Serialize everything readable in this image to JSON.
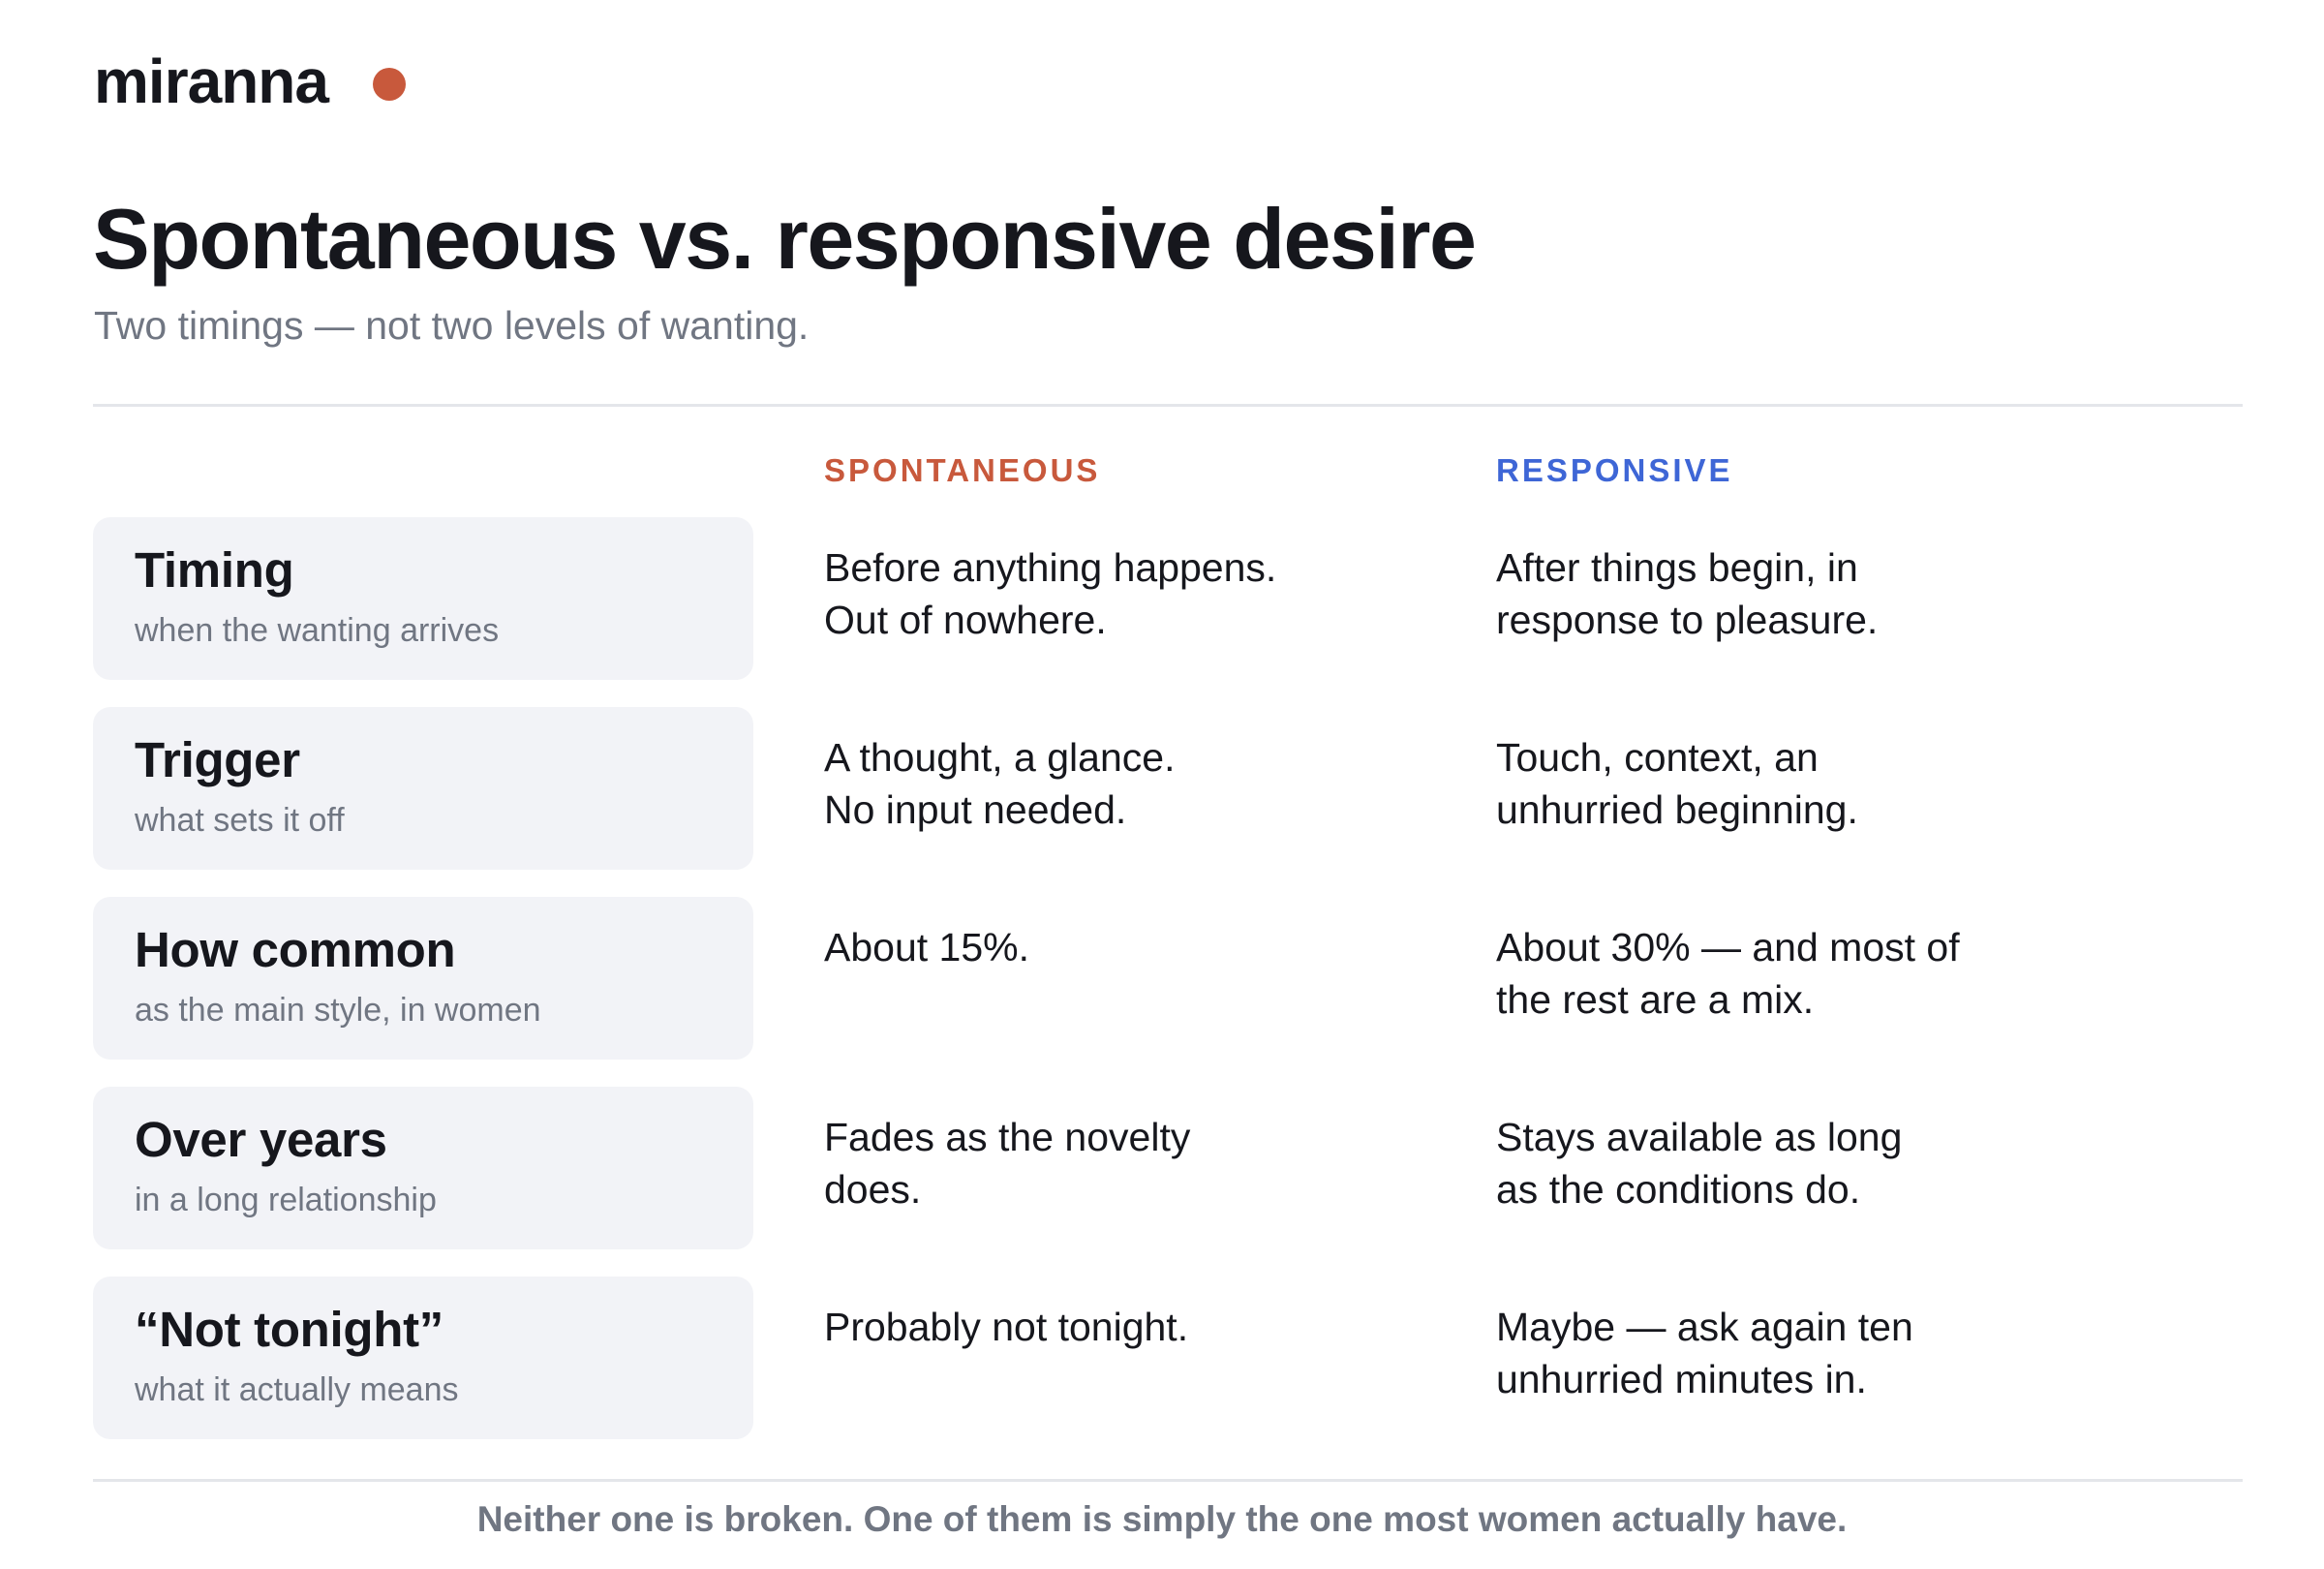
{
  "brand": {
    "name": "miranna",
    "dot_color": "#c8593c"
  },
  "title": "Spontaneous vs. responsive desire",
  "subtitle": "Two timings — not two levels of wanting.",
  "columns": {
    "spontaneous": "SPONTANEOUS",
    "responsive": "RESPONSIVE"
  },
  "colors": {
    "spontaneous": "#c8593c",
    "responsive": "#3e66d6",
    "card_background": "#f2f3f7",
    "muted_text": "#707682"
  },
  "rows": [
    {
      "label": "Timing",
      "sublabel": "when the wanting arrives",
      "spontaneous": "Before anything happens.\nOut of nowhere.",
      "responsive": "After things begin, in\nresponse to pleasure."
    },
    {
      "label": "Trigger",
      "sublabel": "what sets it off",
      "spontaneous": "A thought, a glance.\nNo input needed.",
      "responsive": "Touch, context, an\nunhurried beginning."
    },
    {
      "label": "How common",
      "sublabel": "as the main style, in women",
      "spontaneous": "About 15%.",
      "responsive": "About 30% — and most of\nthe rest are a mix."
    },
    {
      "label": "Over years",
      "sublabel": "in a long relationship",
      "spontaneous": "Fades as the novelty\ndoes.",
      "responsive": "Stays available as long\nas the conditions do."
    },
    {
      "label": "“Not tonight”",
      "sublabel": "what it actually means",
      "spontaneous": "Probably not tonight.",
      "responsive": "Maybe — ask again ten\nunhurried minutes in."
    }
  ],
  "footnote": "Neither one is broken. One of them is simply the one most women actually have."
}
